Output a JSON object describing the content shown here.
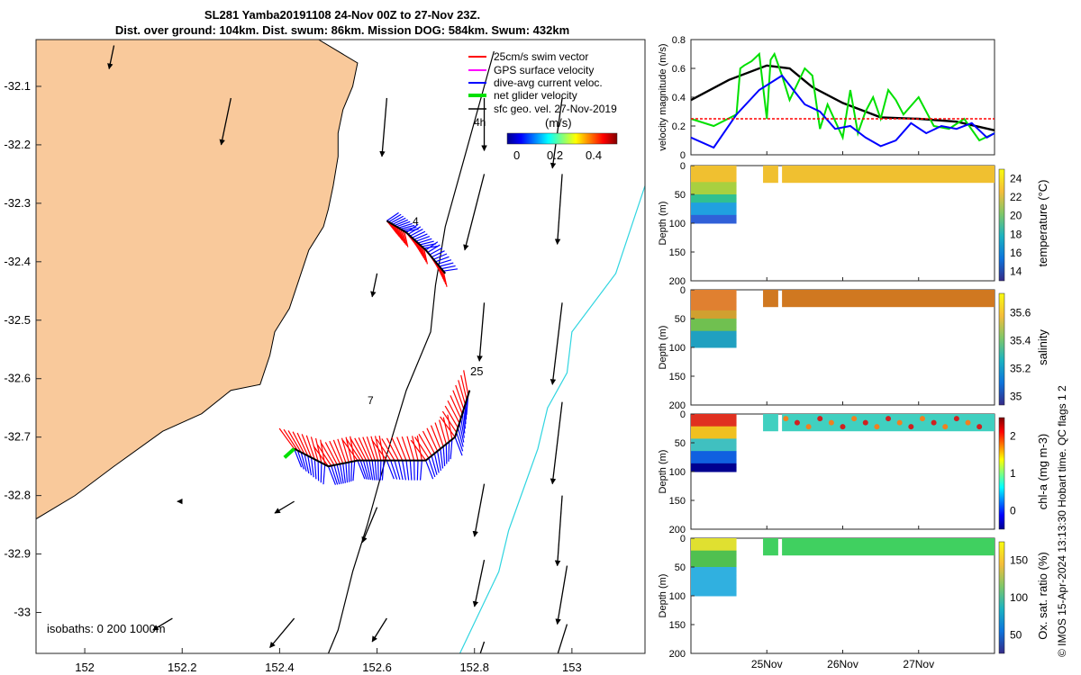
{
  "header": {
    "title_line1": "SL281 Yamba20191108 24-Nov 00Z to 27-Nov 23Z.",
    "title_line2": "Dist. over ground: 104km. Dist. swum: 86km. Mission DOG: 584km. Swum: 432km"
  },
  "credit": "© IMOS 15-Apr-2024 13:13:30 Hobart time. QC flags 1  2",
  "colors": {
    "land": "#f9c99b",
    "track": "#000000",
    "swim": "#ff0000",
    "dive": "#0000ff",
    "net": "#00e000",
    "isobath1000": "#30d5e0"
  },
  "map": {
    "xlim": [
      151.9,
      153.15
    ],
    "ylim": [
      -33.07,
      -32.02
    ],
    "xticks": [
      152,
      152.2,
      152.4,
      152.6,
      152.8,
      153
    ],
    "yticks": [
      -32.1,
      -32.2,
      -32.3,
      -32.4,
      -32.5,
      -32.6,
      -32.7,
      -32.8,
      -32.9,
      -33
    ],
    "xtick_labels": [
      "152",
      "152.2",
      "152.4",
      "152.6",
      "152.8",
      "153"
    ],
    "ytick_labels": [
      "-32.1",
      "-32.2",
      "-32.3",
      "-32.4",
      "-32.5",
      "-32.6",
      "-32.7",
      "-32.8",
      "-32.9",
      "-33"
    ],
    "legend": [
      {
        "label": "25cm/s swim vector",
        "color": "#ff0000"
      },
      {
        "label": "GPS surface velocity",
        "color": "#ff00ff"
      },
      {
        "label": "dive-avg current veloc.",
        "color": "#0000ff"
      },
      {
        "label": "net glider velocity",
        "color": "#00e000"
      },
      {
        "label": "sfc geo. vel. 27-Nov-2019",
        "color": "#000000"
      }
    ],
    "time_mark": "4h",
    "colorbar_label": "(m/s)",
    "colorbar_ticks": [
      "0",
      "0.2",
      "0.4"
    ],
    "isobath_label": "isobaths: 0   200  1000m",
    "point_labels": [
      "4",
      "7",
      "25"
    ],
    "coast": [
      [
        152.48,
        -32.02
      ],
      [
        152.56,
        -32.06
      ],
      [
        152.55,
        -32.1
      ],
      [
        152.53,
        -32.14
      ],
      [
        152.52,
        -32.18
      ],
      [
        152.52,
        -32.22
      ],
      [
        152.51,
        -32.27
      ],
      [
        152.5,
        -32.31
      ],
      [
        152.49,
        -32.34
      ],
      [
        152.46,
        -32.38
      ],
      [
        152.44,
        -32.43
      ],
      [
        152.42,
        -32.48
      ],
      [
        152.39,
        -32.52
      ],
      [
        152.38,
        -32.56
      ],
      [
        152.36,
        -32.61
      ],
      [
        152.3,
        -32.62
      ],
      [
        152.24,
        -32.66
      ],
      [
        152.16,
        -32.69
      ],
      [
        152.06,
        -32.75
      ],
      [
        151.98,
        -32.8
      ],
      [
        151.9,
        -32.84
      ],
      [
        151.9,
        -32.02
      ]
    ],
    "shelf_track": [
      [
        152.84,
        -32.04
      ],
      [
        152.78,
        -32.22
      ],
      [
        152.74,
        -32.34
      ],
      [
        152.72,
        -32.44
      ],
      [
        152.71,
        -32.52
      ],
      [
        152.66,
        -32.62
      ],
      [
        152.62,
        -32.73
      ],
      [
        152.58,
        -32.85
      ],
      [
        152.55,
        -32.93
      ],
      [
        152.52,
        -33.03
      ],
      [
        152.5,
        -33.07
      ]
    ],
    "isobath_1000": [
      [
        153.15,
        -32.27
      ],
      [
        153.09,
        -32.42
      ],
      [
        153.0,
        -32.52
      ],
      [
        152.99,
        -32.59
      ],
      [
        152.95,
        -32.65
      ],
      [
        152.93,
        -32.72
      ],
      [
        152.9,
        -32.79
      ],
      [
        152.87,
        -32.86
      ],
      [
        152.85,
        -32.93
      ],
      [
        152.81,
        -33.0
      ],
      [
        152.77,
        -33.07
      ]
    ],
    "glider_track": [
      [
        152.62,
        -32.33
      ],
      [
        152.66,
        -32.35
      ],
      [
        152.7,
        -32.38
      ],
      [
        152.74,
        -32.42
      ]
    ],
    "glider_track2": [
      [
        152.43,
        -32.72
      ],
      [
        152.5,
        -32.75
      ],
      [
        152.56,
        -32.74
      ],
      [
        152.62,
        -32.74
      ],
      [
        152.7,
        -32.74
      ],
      [
        152.76,
        -32.7
      ],
      [
        152.79,
        -32.62
      ]
    ],
    "geo_arrows": [
      [
        152.06,
        -32.03,
        -0.01,
        -0.04
      ],
      [
        152.3,
        -32.12,
        -0.02,
        -0.08
      ],
      [
        152.62,
        -32.12,
        -0.01,
        -0.1
      ],
      [
        152.82,
        -32.12,
        0.0,
        -0.09
      ],
      [
        152.98,
        -32.12,
        -0.02,
        -0.12
      ],
      [
        152.82,
        -32.25,
        -0.04,
        -0.13
      ],
      [
        152.98,
        -32.25,
        -0.01,
        -0.12
      ],
      [
        152.6,
        -32.42,
        -0.01,
        -0.04
      ],
      [
        152.82,
        -32.47,
        -0.01,
        -0.1
      ],
      [
        152.98,
        -32.47,
        -0.02,
        -0.14
      ],
      [
        152.98,
        -32.64,
        -0.02,
        -0.14
      ],
      [
        152.82,
        -32.78,
        -0.02,
        -0.09
      ],
      [
        152.98,
        -32.8,
        -0.01,
        -0.12
      ],
      [
        152.2,
        -32.81,
        -0.01,
        0.0
      ],
      [
        152.43,
        -32.81,
        -0.04,
        -0.02
      ],
      [
        152.6,
        -32.82,
        -0.03,
        -0.06
      ],
      [
        152.82,
        -32.91,
        -0.02,
        -0.08
      ],
      [
        152.99,
        -32.92,
        -0.02,
        -0.1
      ],
      [
        152.18,
        -33.01,
        -0.04,
        -0.02
      ],
      [
        152.43,
        -33.01,
        -0.05,
        -0.05
      ],
      [
        152.62,
        -33.01,
        -0.03,
        -0.04
      ],
      [
        152.82,
        -33.05,
        -0.02,
        -0.05
      ],
      [
        152.99,
        -33.02,
        -0.03,
        -0.08
      ]
    ]
  },
  "velocity_panel": {
    "ylabel": "velocity magnitude (m/s)",
    "ylim": [
      0,
      0.8
    ],
    "yticks": [
      "0",
      "0.2",
      "0.4",
      "0.6",
      "0.8"
    ],
    "series": [
      {
        "name": "sfc geo",
        "color": "#000000",
        "t": [
          24,
          24.5,
          25,
          25.3,
          25.6,
          26,
          26.5,
          27,
          27.5,
          28
        ],
        "v": [
          0.38,
          0.52,
          0.62,
          0.6,
          0.47,
          0.36,
          0.26,
          0.25,
          0.23,
          0.17
        ]
      },
      {
        "name": "net glider",
        "color": "#00e000",
        "t": [
          24,
          24.3,
          24.6,
          24.65,
          24.7,
          24.8,
          24.9,
          25.0,
          25.05,
          25.1,
          25.2,
          25.3,
          25.5,
          25.6,
          25.7,
          25.8,
          26.0,
          26.1,
          26.2,
          26.3,
          26.4,
          26.5,
          26.6,
          26.7,
          26.8,
          27.0,
          27.2,
          27.4,
          27.6,
          27.8,
          28
        ],
        "v": [
          0.25,
          0.2,
          0.28,
          0.6,
          0.62,
          0.65,
          0.7,
          0.25,
          0.66,
          0.7,
          0.55,
          0.38,
          0.6,
          0.55,
          0.18,
          0.35,
          0.12,
          0.45,
          0.15,
          0.3,
          0.4,
          0.25,
          0.45,
          0.38,
          0.28,
          0.4,
          0.2,
          0.18,
          0.25,
          0.1,
          0.15
        ]
      },
      {
        "name": "dive-avg",
        "color": "#0000ff",
        "t": [
          24,
          24.3,
          24.6,
          24.9,
          25.2,
          25.5,
          25.7,
          25.9,
          26.1,
          26.3,
          26.5,
          26.7,
          26.9,
          27.1,
          27.3,
          27.5,
          27.7,
          27.9,
          28
        ],
        "v": [
          0.12,
          0.05,
          0.28,
          0.45,
          0.55,
          0.35,
          0.3,
          0.18,
          0.2,
          0.12,
          0.06,
          0.1,
          0.22,
          0.15,
          0.2,
          0.18,
          0.22,
          0.12,
          0.15
        ]
      },
      {
        "name": "swim",
        "color": "#ff0000",
        "t": [
          24,
          24.8,
          25.2,
          26.0,
          26.8,
          27.6,
          28
        ],
        "v": [
          0.25,
          0.25,
          0.25,
          0.25,
          0.25,
          0.25,
          0.25
        ]
      }
    ]
  },
  "panels": [
    {
      "cbar_label": "temperature (°C)",
      "cbar_ticks": [
        "14",
        "16",
        "18",
        "20",
        "22",
        "24"
      ],
      "ylabel": "Depth (m)",
      "yticks": [
        "0",
        "50",
        "100",
        "150",
        "200"
      ]
    },
    {
      "cbar_label": "salinity",
      "cbar_ticks": [
        "35",
        "35.2",
        "35.4",
        "35.6"
      ],
      "ylabel": "Depth (m)",
      "yticks": [
        "0",
        "50",
        "100",
        "150",
        "200"
      ]
    },
    {
      "cbar_label": "chl-a (mg m-3)",
      "cbar_ticks": [
        "0",
        "1",
        "2"
      ],
      "ylabel": "Depth (m)",
      "yticks": [
        "0",
        "50",
        "100",
        "150",
        "200"
      ]
    },
    {
      "cbar_label": "Ox. sat. ratio (%)",
      "cbar_ticks": [
        "50",
        "100",
        "150"
      ],
      "ylabel": "Depth (m)",
      "yticks": [
        "0",
        "50",
        "100",
        "150",
        "200"
      ]
    }
  ],
  "time_axis": {
    "labels": [
      "25Nov",
      "26Nov",
      "27Nov"
    ]
  }
}
